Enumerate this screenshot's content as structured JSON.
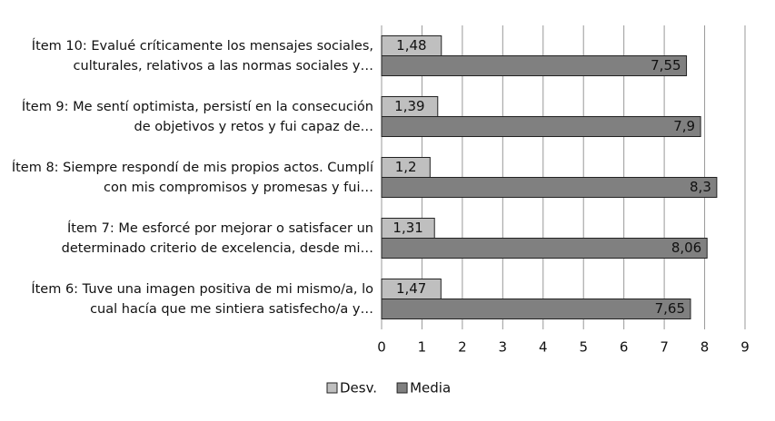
{
  "chart_data": {
    "type": "bar",
    "orientation": "horizontal",
    "categories": [
      "Ítem 10: Evalué críticamente los mensajes sociales, culturales, relativos a las normas sociales y…",
      "Ítem 9: Me sentí optimista, persistí en la consecución de objetivos y retos y fui capaz de…",
      "Ítem 8: Siempre respondí de mis propios actos. Cumplí con mis compromisos y promesas y fui…",
      "Ítem 7: Me esforcé por mejorar o satisfacer un determinado criterio de excelencia, desde mi…",
      "Ítem 6: Tuve una imagen positiva de mi mismo/a, lo cual hacía que me sintiera satisfecho/a y…"
    ],
    "series": [
      {
        "name": "Desv.",
        "color": "#bfbfbf",
        "values": [
          1.48,
          1.39,
          1.2,
          1.31,
          1.47
        ],
        "value_labels": [
          "1,48",
          "1,39",
          "1,2",
          "1,31",
          "1,47"
        ]
      },
      {
        "name": "Media",
        "color": "#808080",
        "values": [
          7.55,
          7.9,
          8.3,
          8.06,
          7.65
        ],
        "value_labels": [
          "7,55",
          "7,9",
          "8,3",
          "8,06",
          "7,65"
        ]
      }
    ],
    "xlim": [
      0,
      9
    ],
    "xticks": [
      0,
      1,
      2,
      3,
      4,
      5,
      6,
      7,
      8,
      9
    ],
    "grid": true,
    "legend": "bottom"
  }
}
